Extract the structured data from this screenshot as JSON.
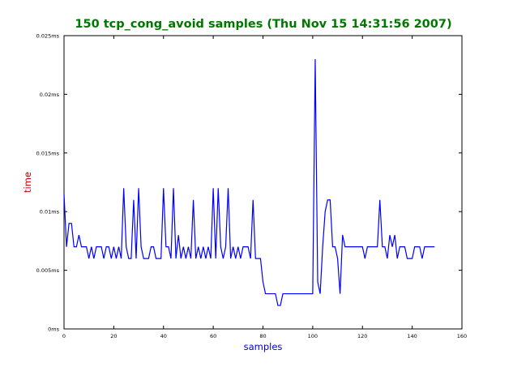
{
  "chart_data": {
    "type": "line",
    "title": "150 tcp_cong_avoid samples (Thu Nov 15 14:31:56 2007)",
    "xlabel": "samples",
    "ylabel": "time",
    "xlim": [
      0,
      160
    ],
    "ylim": [
      0,
      0.025
    ],
    "xticks": [
      0,
      20,
      40,
      60,
      80,
      100,
      120,
      140,
      160
    ],
    "xtick_labels": [
      "0",
      "20",
      "40",
      "60",
      "80",
      "100",
      "120",
      "140",
      "160"
    ],
    "yticks": [
      0,
      0.005,
      0.01,
      0.015,
      0.02,
      0.025
    ],
    "ytick_labels": [
      "0ms",
      "0.005ms",
      "0.01ms",
      "0.015ms",
      "0.02ms",
      "0.025ms"
    ],
    "grid": false,
    "legend": "none",
    "colors": {
      "title": "#007700",
      "xlabel": "#0000cc",
      "ylabel": "#cc0000",
      "line": "#0000ff"
    },
    "series": [
      {
        "values": [
          0.0115,
          0.007,
          0.009,
          0.009,
          0.007,
          0.007,
          0.008,
          0.007,
          0.007,
          0.007,
          0.006,
          0.007,
          0.006,
          0.007,
          0.007,
          0.007,
          0.006,
          0.007,
          0.007,
          0.006,
          0.007,
          0.006,
          0.007,
          0.006,
          0.012,
          0.007,
          0.006,
          0.006,
          0.011,
          0.006,
          0.012,
          0.007,
          0.006,
          0.006,
          0.006,
          0.007,
          0.007,
          0.006,
          0.006,
          0.006,
          0.012,
          0.007,
          0.007,
          0.006,
          0.012,
          0.006,
          0.008,
          0.006,
          0.007,
          0.006,
          0.007,
          0.006,
          0.011,
          0.006,
          0.007,
          0.006,
          0.007,
          0.006,
          0.007,
          0.006,
          0.012,
          0.006,
          0.012,
          0.007,
          0.006,
          0.007,
          0.012,
          0.006,
          0.007,
          0.006,
          0.007,
          0.006,
          0.007,
          0.007,
          0.007,
          0.006,
          0.011,
          0.006,
          0.006,
          0.006,
          0.004,
          0.003,
          0.003,
          0.003,
          0.003,
          0.003,
          0.002,
          0.002,
          0.003,
          0.003,
          0.003,
          0.003,
          0.003,
          0.003,
          0.003,
          0.003,
          0.003,
          0.003,
          0.003,
          0.003,
          0.003,
          0.023,
          0.004,
          0.003,
          0.007,
          0.01,
          0.011,
          0.011,
          0.007,
          0.007,
          0.006,
          0.003,
          0.008,
          0.007,
          0.007,
          0.007,
          0.007,
          0.007,
          0.007,
          0.007,
          0.007,
          0.006,
          0.007,
          0.007,
          0.007,
          0.007,
          0.007,
          0.011,
          0.007,
          0.007,
          0.006,
          0.008,
          0.007,
          0.008,
          0.006,
          0.007,
          0.007,
          0.007,
          0.006,
          0.006,
          0.006,
          0.007,
          0.007,
          0.007,
          0.006,
          0.007,
          0.007,
          0.007,
          0.007,
          0.007
        ]
      }
    ]
  }
}
